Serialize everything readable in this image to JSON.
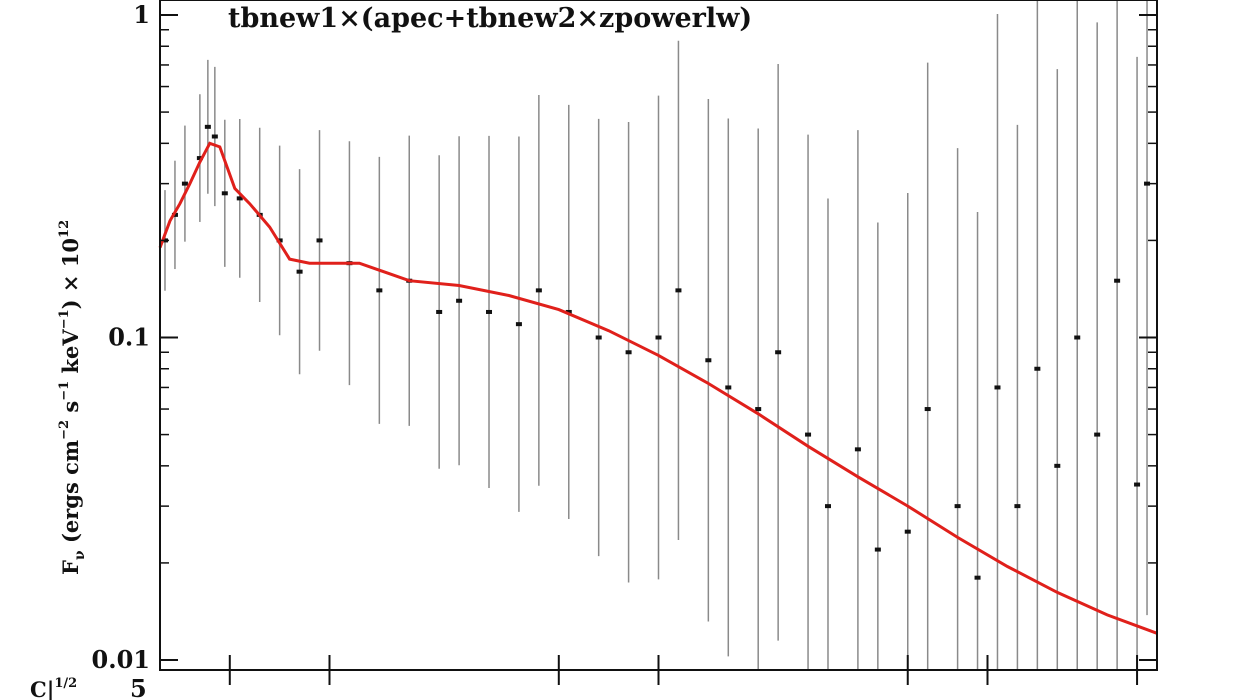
{
  "chart_data": {
    "type": "scatter",
    "title": "tbnew1×(apec+tbnew2×zpowerlw)",
    "ylabel_main": "F",
    "ylabel_sub": "ν",
    "ylabel_rest": " (ergs cm",
    "ylabel_exp1": "−2",
    "ylabel_mid1": " s",
    "ylabel_exp2": "−1",
    "ylabel_mid2": " keV",
    "ylabel_exp3": "−1",
    "ylabel_end": ") × 10",
    "ylabel_exp4": "12",
    "y_scale": "log",
    "ylim": [
      0.01,
      1.0
    ],
    "yticks": [
      {
        "value": 1.0,
        "label": "1"
      },
      {
        "value": 0.1,
        "label": "0.1"
      },
      {
        "value": 0.01,
        "label": "0.01"
      }
    ],
    "lower_panel_label": "C|",
    "lower_panel_label_exp": "1/2",
    "lower_panel_tick": "5",
    "model_color": "#e0201b",
    "data_color": "#111111",
    "errorbar_color": "#8a8a8a",
    "model": {
      "name": "",
      "x": [
        0.0,
        0.01,
        0.02,
        0.03,
        0.04,
        0.05,
        0.06,
        0.075,
        0.09,
        0.11,
        0.13,
        0.15,
        0.2,
        0.25,
        0.3,
        0.35,
        0.4,
        0.45,
        0.5,
        0.55,
        0.6,
        0.65,
        0.7,
        0.75,
        0.8,
        0.85,
        0.9,
        0.95,
        1.0
      ],
      "y": [
        0.19,
        0.23,
        0.26,
        0.3,
        0.35,
        0.4,
        0.39,
        0.29,
        0.26,
        0.22,
        0.175,
        0.17,
        0.17,
        0.15,
        0.145,
        0.135,
        0.122,
        0.105,
        0.088,
        0.072,
        0.058,
        0.046,
        0.037,
        0.03,
        0.024,
        0.0195,
        0.0162,
        0.0138,
        0.0121
      ]
    },
    "points": {
      "x": [
        0.005,
        0.015,
        0.025,
        0.04,
        0.048,
        0.055,
        0.065,
        0.08,
        0.1,
        0.12,
        0.14,
        0.16,
        0.19,
        0.22,
        0.25,
        0.28,
        0.3,
        0.33,
        0.36,
        0.38,
        0.41,
        0.44,
        0.47,
        0.5,
        0.52,
        0.55,
        0.57,
        0.6,
        0.62,
        0.65,
        0.67,
        0.7,
        0.72,
        0.75,
        0.77,
        0.8,
        0.82,
        0.84,
        0.86,
        0.88,
        0.9,
        0.92,
        0.94,
        0.96,
        0.98,
        0.99
      ],
      "y": [
        0.2,
        0.24,
        0.3,
        0.36,
        0.45,
        0.42,
        0.28,
        0.27,
        0.24,
        0.2,
        0.16,
        0.2,
        0.17,
        0.14,
        0.15,
        0.12,
        0.13,
        0.12,
        0.11,
        0.14,
        0.12,
        0.1,
        0.09,
        0.1,
        0.14,
        0.085,
        0.07,
        0.06,
        0.09,
        0.05,
        0.03,
        0.045,
        0.022,
        0.025,
        0.06,
        0.03,
        0.018,
        0.07,
        0.03,
        0.08,
        0.04,
        0.1,
        0.05,
        0.15,
        0.035,
        0.3
      ]
    }
  }
}
